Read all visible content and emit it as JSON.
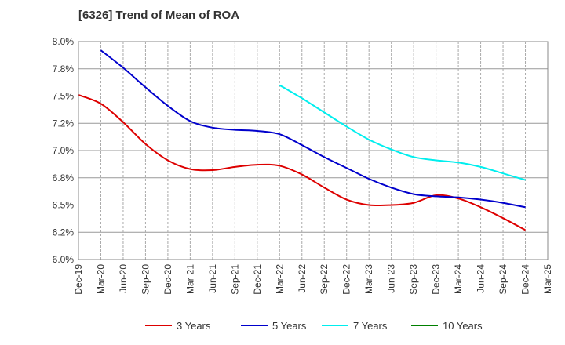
{
  "chart_data": {
    "type": "line",
    "title": "[6326]  Trend of Mean of ROA",
    "xlabel": "",
    "ylabel": "",
    "categories": [
      "Dec-19",
      "Mar-20",
      "Jun-20",
      "Sep-20",
      "Dec-20",
      "Mar-21",
      "Jun-21",
      "Sep-21",
      "Dec-21",
      "Mar-22",
      "Jun-22",
      "Sep-22",
      "Dec-22",
      "Mar-23",
      "Jun-23",
      "Sep-23",
      "Dec-23",
      "Mar-24",
      "Jun-24",
      "Sep-24",
      "Dec-24",
      "Mar-25"
    ],
    "y_ticks": [
      "6.0%",
      "6.2%",
      "6.5%",
      "6.8%",
      "7.0%",
      "7.2%",
      "7.5%",
      "7.8%",
      "8.0%"
    ],
    "ylim": [
      6.0,
      8.0
    ],
    "grid": true,
    "legend_position": "bottom",
    "series": [
      {
        "name": "3 Years",
        "color": "#dd0000",
        "values": [
          7.51,
          7.43,
          7.26,
          7.06,
          6.91,
          6.83,
          6.82,
          6.85,
          6.87,
          6.86,
          6.78,
          6.66,
          6.55,
          6.5,
          6.5,
          6.52,
          6.59,
          6.56,
          6.48,
          6.38,
          6.27,
          null
        ]
      },
      {
        "name": "5 Years",
        "color": "#0000cc",
        "values": [
          null,
          7.92,
          7.76,
          7.58,
          7.41,
          7.27,
          7.21,
          7.19,
          7.18,
          7.15,
          7.05,
          6.94,
          6.84,
          6.74,
          6.66,
          6.6,
          6.58,
          6.57,
          6.55,
          6.52,
          6.48,
          null
        ]
      },
      {
        "name": "7 Years",
        "color": "#00eeee",
        "values": [
          null,
          null,
          null,
          null,
          null,
          null,
          null,
          null,
          null,
          7.6,
          7.48,
          7.35,
          7.22,
          7.1,
          7.01,
          6.94,
          6.91,
          6.89,
          6.85,
          6.79,
          6.73,
          null
        ]
      },
      {
        "name": "10 Years",
        "color": "#008000",
        "values": [
          null,
          null,
          null,
          null,
          null,
          null,
          null,
          null,
          null,
          null,
          null,
          null,
          null,
          null,
          null,
          null,
          null,
          null,
          null,
          null,
          null,
          null
        ]
      }
    ]
  }
}
